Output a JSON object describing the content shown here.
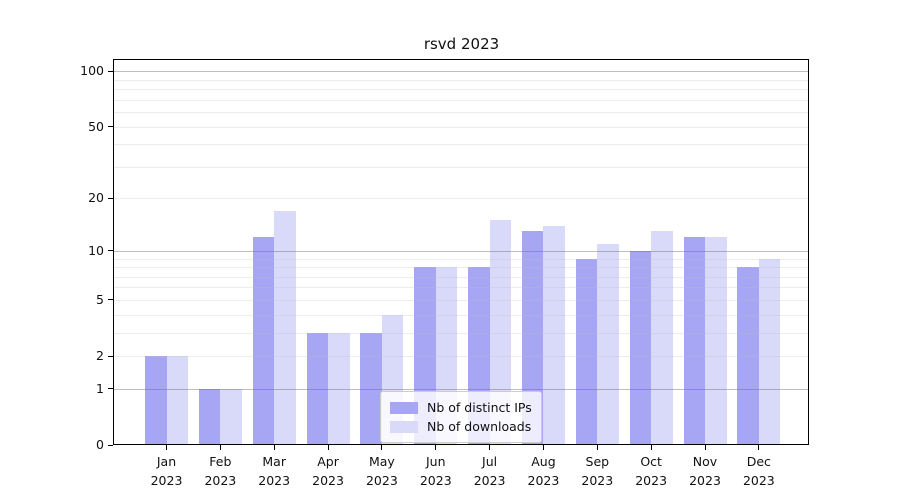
{
  "chart_data": {
    "type": "bar",
    "title": "rsvd 2023",
    "xlabel": "",
    "ylabel": "",
    "scale": "log1p",
    "ylim": [
      0,
      115
    ],
    "yticks": [
      0,
      1,
      2,
      5,
      10,
      20,
      50,
      100
    ],
    "minor_gridlines": [
      2,
      3,
      4,
      5,
      6,
      7,
      8,
      9,
      20,
      30,
      40,
      50,
      60,
      70,
      80,
      90
    ],
    "major_gridlines": [
      1,
      10,
      100
    ],
    "grid": "on",
    "categories": [
      "Jan",
      "Feb",
      "Mar",
      "Apr",
      "May",
      "Jun",
      "Jul",
      "Aug",
      "Sep",
      "Oct",
      "Nov",
      "Dec"
    ],
    "category_year": "2023",
    "series": [
      {
        "name": "Nb of distinct IPs",
        "color": "#a6a6f5",
        "values": [
          2,
          1,
          12,
          3,
          3,
          8,
          8,
          13,
          9,
          10,
          12,
          8
        ]
      },
      {
        "name": "Nb of downloads",
        "color": "#d9d9f9",
        "values": [
          2,
          1,
          17,
          3,
          4,
          8,
          15,
          14,
          11,
          13,
          12,
          9
        ]
      }
    ],
    "legend_position": "lower center",
    "colors": {
      "background": "#ffffff",
      "spine": "#000000",
      "tick_text": "#111111",
      "legend_border": "#cccccc"
    }
  }
}
